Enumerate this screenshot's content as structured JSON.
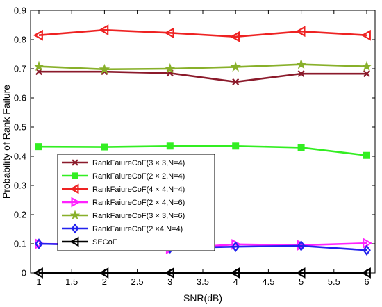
{
  "chart_data": {
    "type": "line",
    "xlabel": "SNR(dB)",
    "ylabel": "Probability of Rank Failure",
    "xlim": [
      1,
      6
    ],
    "ylim": [
      0,
      0.9
    ],
    "xticks": [
      1,
      1.5,
      2,
      2.5,
      3,
      3.5,
      4,
      4.5,
      5,
      5.5,
      6
    ],
    "yticks": [
      0,
      0.1,
      0.2,
      0.3,
      0.4,
      0.5,
      0.6,
      0.7,
      0.8,
      0.9
    ],
    "x": [
      1,
      2,
      3,
      4,
      5,
      6
    ],
    "grid": false,
    "legend_position": "lower-left",
    "series": [
      {
        "name": "RankFaiureCoF(3 × 3,N=4)",
        "color": "#8b1a2b",
        "marker": "x",
        "values": [
          0.69,
          0.69,
          0.685,
          0.655,
          0.683,
          0.683
        ]
      },
      {
        "name": "RankFaiureCoF(2 × 2,N=4)",
        "color": "#33ee22",
        "marker": "square",
        "values": [
          0.433,
          0.432,
          0.435,
          0.435,
          0.43,
          0.403
        ]
      },
      {
        "name": "RankFaiureCoF(4 × 4,N=4)",
        "color": "#ee2222",
        "marker": "triangle-left",
        "values": [
          0.815,
          0.833,
          0.823,
          0.81,
          0.828,
          0.815
        ]
      },
      {
        "name": "RankFaiureCoF(2 × 4,N=6)",
        "color": "#ff22ff",
        "marker": "triangle-right",
        "values": [
          0.1,
          0.097,
          0.083,
          0.098,
          0.095,
          0.102
        ]
      },
      {
        "name": "RankFaiureCoF(3 × 3,N=6)",
        "color": "#88b02a",
        "marker": "star",
        "values": [
          0.708,
          0.698,
          0.7,
          0.706,
          0.715,
          0.708
        ]
      },
      {
        "name": "RankFaiureCoF(2 ×4,N=4)",
        "color": "#2222ee",
        "marker": "diamond",
        "values": [
          0.1,
          0.095,
          0.085,
          0.09,
          0.093,
          0.078
        ]
      },
      {
        "name": "SECoF",
        "color": "#000000",
        "marker": "triangle-left",
        "values": [
          0,
          0,
          0,
          0,
          0,
          0
        ]
      }
    ]
  }
}
